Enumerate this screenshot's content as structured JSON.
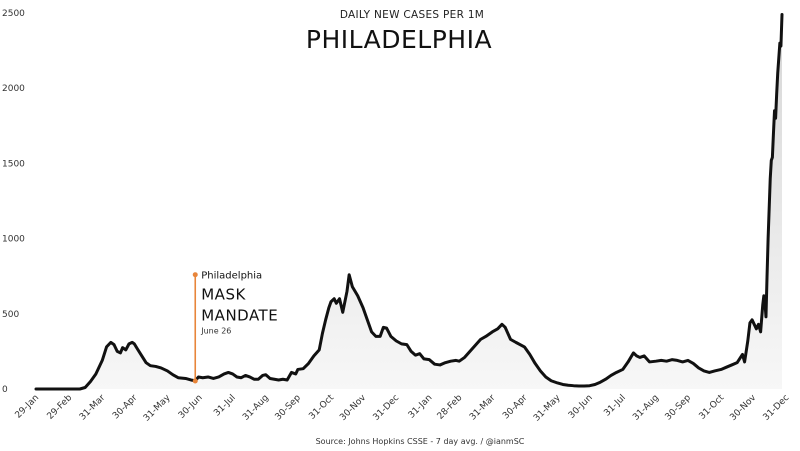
{
  "chart_data": {
    "type": "area",
    "subtitle": "DAILY NEW CASES PER 1M",
    "title": "PHILADELPHIA",
    "source": "Source: Johns Hopkins CSSE - 7 day avg. / @ianmSC",
    "ylim": [
      0,
      2500
    ],
    "yticks": [
      "0",
      "500",
      "1000",
      "1500",
      "2000",
      "2500"
    ],
    "xticks": [
      "29-Jan",
      "29-Feb",
      "31-Mar",
      "30-Apr",
      "31-May",
      "30-Jun",
      "31-Jul",
      "31-Aug",
      "30-Sep",
      "31-Oct",
      "30-Nov",
      "31-Dec",
      "31-Jan",
      "28-Feb",
      "31-Mar",
      "30-Apr",
      "31-May",
      "30-Jun",
      "31-Jul",
      "31-Aug",
      "30-Sep",
      "31-Oct",
      "30-Nov",
      "31-Dec"
    ],
    "grid": false,
    "colors": {
      "line": "#111111",
      "area_top": "#dcdcdc",
      "annotation": "#e8853a"
    },
    "annotation": {
      "at": "26-Jun",
      "label": "Philadelphia",
      "line1": "MASK",
      "line2": "MANDATE",
      "date": "June 26",
      "value": 760
    },
    "series": [
      {
        "points": [
          [
            "29-Jan",
            0
          ],
          [
            "15-Feb",
            0
          ],
          [
            "29-Feb",
            0
          ],
          [
            "10-Mar",
            0
          ],
          [
            "15-Mar",
            10
          ],
          [
            "20-Mar",
            50
          ],
          [
            "25-Mar",
            100
          ],
          [
            "31-Mar",
            190
          ],
          [
            "4-Apr",
            280
          ],
          [
            "8-Apr",
            310
          ],
          [
            "11-Apr",
            295
          ],
          [
            "14-Apr",
            250
          ],
          [
            "17-Apr",
            240
          ],
          [
            "19-Apr",
            275
          ],
          [
            "22-Apr",
            260
          ],
          [
            "25-Apr",
            300
          ],
          [
            "28-Apr",
            310
          ],
          [
            "30-Apr",
            300
          ],
          [
            "3-May",
            265
          ],
          [
            "7-May",
            220
          ],
          [
            "11-May",
            175
          ],
          [
            "15-May",
            155
          ],
          [
            "20-May",
            150
          ],
          [
            "25-May",
            140
          ],
          [
            "31-May",
            120
          ],
          [
            "5-Jun",
            95
          ],
          [
            "10-Jun",
            75
          ],
          [
            "17-Jun",
            70
          ],
          [
            "22-Jun",
            60
          ],
          [
            "26-Jun",
            55
          ],
          [
            "29-Jun",
            80
          ],
          [
            "3-Jul",
            75
          ],
          [
            "8-Jul",
            80
          ],
          [
            "13-Jul",
            70
          ],
          [
            "18-Jul",
            80
          ],
          [
            "23-Jul",
            100
          ],
          [
            "27-Jul",
            110
          ],
          [
            "31-Jul",
            100
          ],
          [
            "4-Aug",
            80
          ],
          [
            "8-Aug",
            75
          ],
          [
            "12-Aug",
            90
          ],
          [
            "16-Aug",
            80
          ],
          [
            "20-Aug",
            65
          ],
          [
            "24-Aug",
            65
          ],
          [
            "28-Aug",
            90
          ],
          [
            "31-Aug",
            95
          ],
          [
            "4-Sep",
            70
          ],
          [
            "8-Sep",
            65
          ],
          [
            "12-Sep",
            60
          ],
          [
            "16-Sep",
            65
          ],
          [
            "20-Sep",
            60
          ],
          [
            "24-Sep",
            110
          ],
          [
            "28-Sep",
            100
          ],
          [
            "30-Sep",
            130
          ],
          [
            "5-Oct",
            135
          ],
          [
            "10-Oct",
            170
          ],
          [
            "15-Oct",
            220
          ],
          [
            "20-Oct",
            260
          ],
          [
            "23-Oct",
            370
          ],
          [
            "26-Oct",
            460
          ],
          [
            "29-Oct",
            540
          ],
          [
            "31-Oct",
            580
          ],
          [
            "3-Nov",
            600
          ],
          [
            "5-Nov",
            570
          ],
          [
            "8-Nov",
            600
          ],
          [
            "11-Nov",
            510
          ],
          [
            "15-Nov",
            650
          ],
          [
            "17-Nov",
            760
          ],
          [
            "20-Nov",
            680
          ],
          [
            "25-Nov",
            620
          ],
          [
            "30-Nov",
            540
          ],
          [
            "4-Dec",
            460
          ],
          [
            "8-Dec",
            380
          ],
          [
            "12-Dec",
            350
          ],
          [
            "16-Dec",
            350
          ],
          [
            "19-Dec",
            410
          ],
          [
            "22-Dec",
            405
          ],
          [
            "26-Dec",
            350
          ],
          [
            "31-Dec",
            320
          ],
          [
            "5-Jan",
            300
          ],
          [
            "10-Jan",
            295
          ],
          [
            "14-Jan",
            250
          ],
          [
            "18-Jan",
            225
          ],
          [
            "22-Jan",
            235
          ],
          [
            "26-Jan",
            200
          ],
          [
            "31-Jan",
            195
          ],
          [
            "5-Feb",
            165
          ],
          [
            "10-Feb",
            160
          ],
          [
            "15-Feb",
            175
          ],
          [
            "20-Feb",
            185
          ],
          [
            "25-Feb",
            190
          ],
          [
            "28-Feb",
            185
          ],
          [
            "5-Mar",
            210
          ],
          [
            "10-Mar",
            250
          ],
          [
            "15-Mar",
            290
          ],
          [
            "20-Mar",
            330
          ],
          [
            "25-Mar",
            350
          ],
          [
            "31-Mar",
            380
          ],
          [
            "5-Apr",
            400
          ],
          [
            "9-Apr",
            430
          ],
          [
            "12-Apr",
            410
          ],
          [
            "17-Apr",
            330
          ],
          [
            "22-Apr",
            310
          ],
          [
            "30-Apr",
            280
          ],
          [
            "5-May",
            230
          ],
          [
            "10-May",
            170
          ],
          [
            "15-May",
            120
          ],
          [
            "20-May",
            80
          ],
          [
            "25-May",
            55
          ],
          [
            "31-May",
            40
          ],
          [
            "5-Jun",
            30
          ],
          [
            "10-Jun",
            25
          ],
          [
            "15-Jun",
            22
          ],
          [
            "20-Jun",
            20
          ],
          [
            "25-Jun",
            20
          ],
          [
            "30-Jun",
            22
          ],
          [
            "5-Jul",
            30
          ],
          [
            "10-Jul",
            45
          ],
          [
            "15-Jul",
            65
          ],
          [
            "20-Jul",
            90
          ],
          [
            "25-Jul",
            110
          ],
          [
            "31-Jul",
            130
          ],
          [
            "5-Aug",
            180
          ],
          [
            "10-Aug",
            240
          ],
          [
            "13-Aug",
            220
          ],
          [
            "16-Aug",
            210
          ],
          [
            "20-Aug",
            220
          ],
          [
            "25-Aug",
            180
          ],
          [
            "31-Aug",
            185
          ],
          [
            "5-Sep",
            190
          ],
          [
            "10-Sep",
            185
          ],
          [
            "15-Sep",
            195
          ],
          [
            "20-Sep",
            190
          ],
          [
            "25-Sep",
            180
          ],
          [
            "30-Sep",
            190
          ],
          [
            "5-Oct",
            170
          ],
          [
            "10-Oct",
            140
          ],
          [
            "15-Oct",
            120
          ],
          [
            "20-Oct",
            110
          ],
          [
            "25-Oct",
            120
          ],
          [
            "31-Oct",
            130
          ],
          [
            "5-Nov",
            145
          ],
          [
            "10-Nov",
            160
          ],
          [
            "15-Nov",
            175
          ],
          [
            "20-Nov",
            230
          ],
          [
            "22-Nov",
            180
          ],
          [
            "25-Nov",
            320
          ],
          [
            "27-Nov",
            440
          ],
          [
            "29-Nov",
            460
          ],
          [
            "1-Dec",
            430
          ],
          [
            "3-Dec",
            400
          ],
          [
            "5-Dec",
            430
          ],
          [
            "7-Dec",
            380
          ],
          [
            "9-Dec",
            560
          ],
          [
            "10-Dec",
            620
          ],
          [
            "11-Dec",
            580
          ],
          [
            "12-Dec",
            480
          ],
          [
            "13-Dec",
            750
          ],
          [
            "14-Dec",
            1000
          ],
          [
            "15-Dec",
            1200
          ],
          [
            "16-Dec",
            1400
          ],
          [
            "17-Dec",
            1520
          ],
          [
            "18-Dec",
            1540
          ],
          [
            "19-Dec",
            1700
          ],
          [
            "20-Dec",
            1850
          ],
          [
            "21-Dec",
            1800
          ],
          [
            "22-Dec",
            1960
          ],
          [
            "23-Dec",
            2100
          ],
          [
            "24-Dec",
            2200
          ],
          [
            "25-Dec",
            2300
          ],
          [
            "26-Dec",
            2280
          ],
          [
            "27-Dec",
            2490
          ]
        ]
      }
    ]
  }
}
